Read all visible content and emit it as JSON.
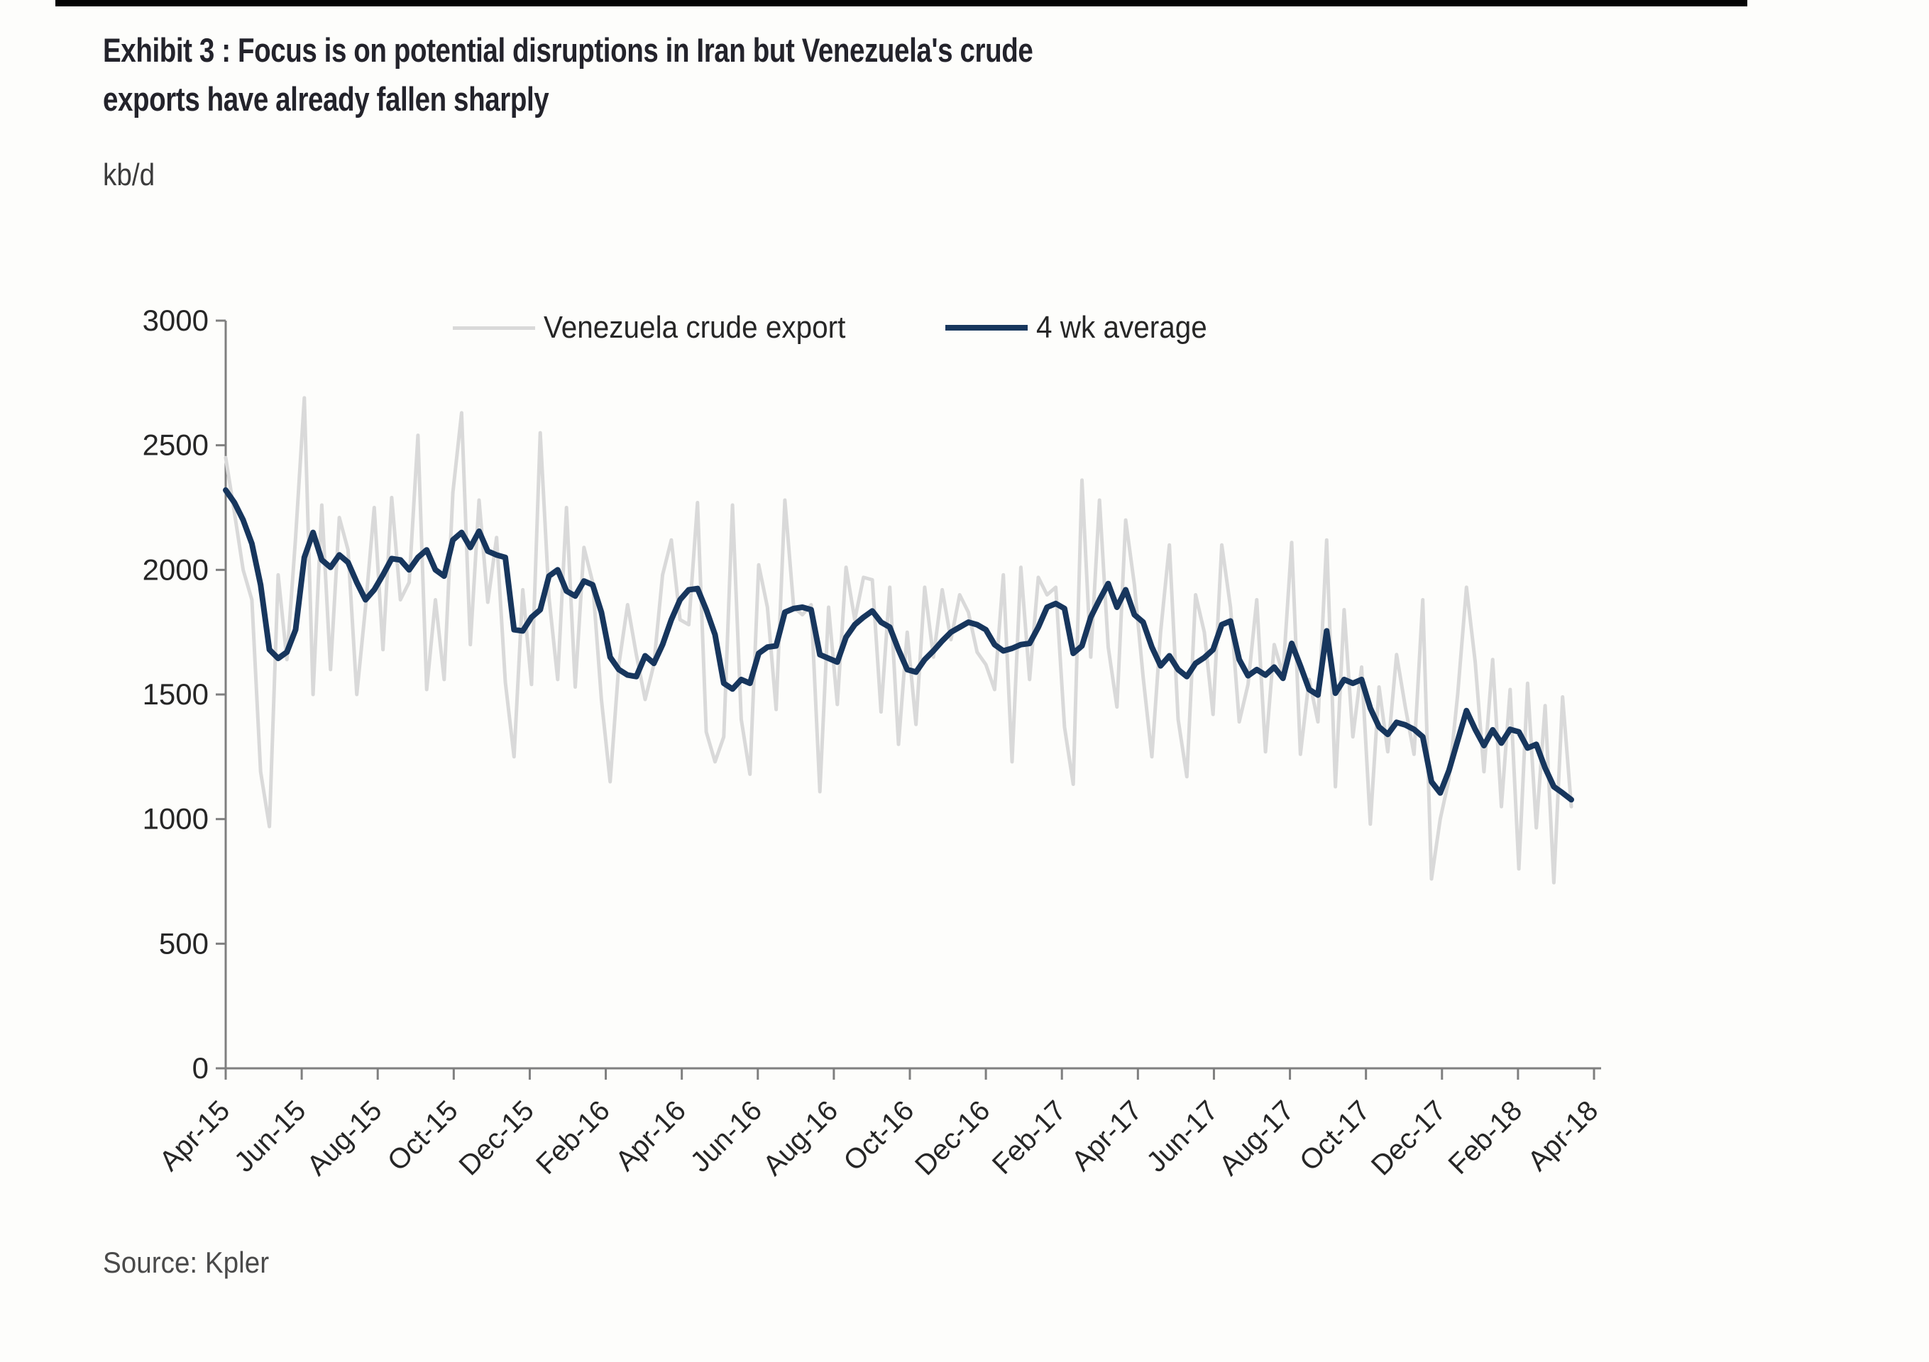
{
  "header": {
    "title_line1": "Exhibit 3 : Focus is on potential disruptions in Iran but Venezuela's crude",
    "title_line2": "exports have already fallen sharply",
    "unit_label": "kb/d"
  },
  "footer": {
    "source_label": "Source: Kpler"
  },
  "colors": {
    "title_text": "#23232b",
    "axis": "#7f7f7f",
    "tick_label": "#262626",
    "venezuela_line": "#d9d9d9",
    "average_line": "#17365d",
    "top_border": "#050505"
  },
  "chart_data": {
    "type": "line",
    "title": "Exhibit 3 : Focus is on potential disruptions in Iran but Venezuela's crude exports have already fallen sharply",
    "ylabel": "kb/d",
    "ylim": [
      0,
      3000
    ],
    "y_ticks": [
      0,
      500,
      1000,
      1500,
      2000,
      2500,
      3000
    ],
    "x_tick_labels": [
      "Apr-15",
      "Jun-15",
      "Aug-15",
      "Oct-15",
      "Dec-15",
      "Feb-16",
      "Apr-16",
      "Jun-16",
      "Aug-16",
      "Oct-16",
      "Dec-16",
      "Feb-17",
      "Apr-17",
      "Jun-17",
      "Aug-17",
      "Oct-17",
      "Dec-17",
      "Feb-18",
      "Apr-18"
    ],
    "x_unit": "weekly observations, Apr-2015 to Apr-2018",
    "weeks_per_tick": 8.7,
    "total_weeks_span": 156.6,
    "grid": false,
    "legend_position": "top-inside",
    "series": [
      {
        "name": "Venezuela crude export",
        "color": "#d9d9d9",
        "width": 5,
        "values": [
          2450,
          2230,
          2000,
          1880,
          1190,
          970,
          1980,
          1640,
          2130,
          2690,
          1500,
          2260,
          1600,
          2210,
          2080,
          1500,
          1850,
          2250,
          1680,
          2290,
          1880,
          1950,
          2540,
          1520,
          1880,
          1560,
          2310,
          2630,
          1700,
          2280,
          1870,
          2130,
          1550,
          1250,
          1920,
          1540,
          2550,
          1890,
          1560,
          2250,
          1530,
          2090,
          1950,
          1480,
          1150,
          1620,
          1860,
          1660,
          1480,
          1620,
          1980,
          2120,
          1800,
          1780,
          2270,
          1350,
          1230,
          1330,
          2260,
          1400,
          1180,
          2020,
          1850,
          1440,
          2280,
          1850,
          1820,
          1860,
          1110,
          1850,
          1460,
          2010,
          1800,
          1970,
          1960,
          1430,
          1930,
          1300,
          1750,
          1380,
          1930,
          1650,
          1920,
          1720,
          1900,
          1830,
          1670,
          1620,
          1520,
          1980,
          1230,
          2010,
          1560,
          1970,
          1900,
          1930,
          1370,
          1140,
          2360,
          1650,
          2280,
          1690,
          1450,
          2200,
          1940,
          1570,
          1250,
          1750,
          2100,
          1400,
          1170,
          1900,
          1750,
          1420,
          2100,
          1850,
          1390,
          1540,
          1880,
          1270,
          1700,
          1580,
          2110,
          1260,
          1560,
          1390,
          2120,
          1130,
          1840,
          1330,
          1610,
          980,
          1530,
          1270,
          1660,
          1450,
          1260,
          1880,
          760,
          1000,
          1160,
          1500,
          1930,
          1630,
          1190,
          1640,
          1050,
          1520,
          800,
          1545,
          965,
          1455,
          745,
          1490,
          1050
        ]
      },
      {
        "name": "4 wk average",
        "color": "#17365d",
        "width": 8,
        "values": [
          2320,
          2270,
          2200,
          2105,
          1940,
          1680,
          1645,
          1670,
          1760,
          2050,
          2150,
          2040,
          2010,
          2060,
          2030,
          1950,
          1880,
          1920,
          1980,
          2045,
          2040,
          2000,
          2050,
          2080,
          2000,
          1975,
          2120,
          2150,
          2090,
          2155,
          2075,
          2060,
          2050,
          1760,
          1755,
          1810,
          1840,
          1975,
          2000,
          1915,
          1895,
          1955,
          1940,
          1830,
          1650,
          1600,
          1578,
          1572,
          1655,
          1625,
          1700,
          1800,
          1880,
          1920,
          1925,
          1840,
          1740,
          1545,
          1522,
          1560,
          1545,
          1665,
          1690,
          1695,
          1830,
          1845,
          1850,
          1840,
          1660,
          1645,
          1630,
          1730,
          1780,
          1810,
          1835,
          1790,
          1770,
          1680,
          1600,
          1590,
          1640,
          1675,
          1715,
          1750,
          1770,
          1790,
          1780,
          1760,
          1700,
          1675,
          1685,
          1700,
          1705,
          1770,
          1850,
          1865,
          1845,
          1665,
          1695,
          1810,
          1880,
          1945,
          1850,
          1920,
          1820,
          1790,
          1690,
          1615,
          1655,
          1600,
          1572,
          1625,
          1648,
          1680,
          1780,
          1795,
          1640,
          1575,
          1600,
          1578,
          1610,
          1565,
          1705,
          1615,
          1520,
          1498,
          1755,
          1505,
          1560,
          1545,
          1560,
          1445,
          1370,
          1340,
          1388,
          1378,
          1360,
          1330,
          1150,
          1105,
          1195,
          1315,
          1435,
          1360,
          1295,
          1358,
          1305,
          1360,
          1350,
          1285,
          1300,
          1205,
          1130,
          1105,
          1078
        ]
      }
    ]
  }
}
